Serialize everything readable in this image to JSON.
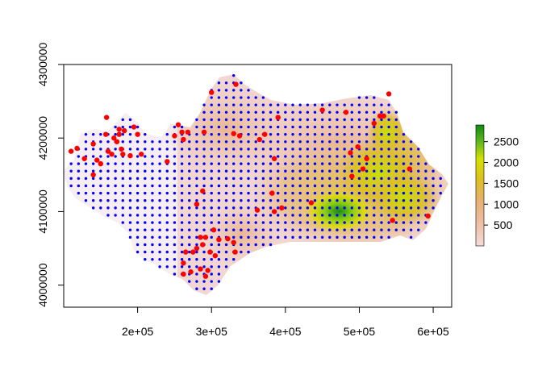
{
  "chart_data": {
    "type": "scatter",
    "title": "",
    "xlabel": "",
    "ylabel": "",
    "xlim": [
      100000,
      625000
    ],
    "ylim": [
      3970000,
      4300000
    ],
    "x_ticks": [
      200000,
      300000,
      400000,
      500000,
      600000
    ],
    "x_tick_labels": [
      "2e+05",
      "3e+05",
      "4e+05",
      "5e+05",
      "6e+05"
    ],
    "y_ticks": [
      4000000,
      4100000,
      4200000,
      4300000
    ],
    "y_tick_labels": [
      "4000000",
      "4100000",
      "4200000",
      "4300000"
    ],
    "grid": false,
    "legend": {
      "type": "colorbar",
      "placement": "right",
      "range": [
        0,
        2900
      ],
      "ticks": [
        500,
        1000,
        1500,
        2000,
        2500
      ],
      "tick_labels": [
        "500",
        "1000",
        "1500",
        "2000",
        "2500"
      ],
      "colors": [
        "#f5dcd8",
        "#eab38a",
        "#dcc020",
        "#d2e000",
        "#1a8f1a"
      ]
    },
    "background_field": {
      "description_hidden": true,
      "type": "heatmap",
      "hotspots": [
        {
          "x": 470000,
          "y": 4100000,
          "value": 2800
        },
        {
          "x": 510000,
          "y": 4130000,
          "value": 2000
        },
        {
          "x": 525000,
          "y": 4200000,
          "value": 1700
        },
        {
          "x": 440000,
          "y": 4140000,
          "value": 1400
        },
        {
          "x": 540000,
          "y": 4150000,
          "value": 1400
        }
      ]
    },
    "series": [
      {
        "style": "grid-points",
        "color": "#0000ff",
        "spacing": 10000
      },
      {
        "style": "observation-points",
        "color": "#ff0000",
        "points": [
          [
            110000,
            4182000
          ],
          [
            118000,
            4186000
          ],
          [
            128000,
            4172000
          ],
          [
            140000,
            4192000
          ],
          [
            145000,
            4170000
          ],
          [
            150000,
            4165000
          ],
          [
            157000,
            4205000
          ],
          [
            160000,
            4182000
          ],
          [
            158000,
            4228000
          ],
          [
            165000,
            4178000
          ],
          [
            168000,
            4200000
          ],
          [
            172000,
            4195000
          ],
          [
            175000,
            4205000
          ],
          [
            178000,
            4185000
          ],
          [
            180000,
            4178000
          ],
          [
            175000,
            4212000
          ],
          [
            182000,
            4210000
          ],
          [
            195000,
            4215000
          ],
          [
            200000,
            4205000
          ],
          [
            190000,
            4176000
          ],
          [
            205000,
            4178000
          ],
          [
            140000,
            4150000
          ],
          [
            240000,
            4168000
          ],
          [
            250000,
            4203000
          ],
          [
            255000,
            4218000
          ],
          [
            262000,
            4198000
          ],
          [
            260000,
            4208000
          ],
          [
            268000,
            4208000
          ],
          [
            290000,
            4208000
          ],
          [
            300000,
            4262000
          ],
          [
            333000,
            4273000
          ],
          [
            330000,
            4206000
          ],
          [
            338000,
            4203000
          ],
          [
            365000,
            4198000
          ],
          [
            372000,
            4205000
          ],
          [
            390000,
            4228000
          ],
          [
            385000,
            4172000
          ],
          [
            382000,
            4125000
          ],
          [
            385000,
            4100000
          ],
          [
            395000,
            4105000
          ],
          [
            362000,
            4102000
          ],
          [
            288000,
            4128000
          ],
          [
            280000,
            4110000
          ],
          [
            303000,
            4075000
          ],
          [
            310000,
            4062000
          ],
          [
            322000,
            4063000
          ],
          [
            330000,
            4058000
          ],
          [
            285000,
            4065000
          ],
          [
            292000,
            4065000
          ],
          [
            288000,
            4055000
          ],
          [
            280000,
            4050000
          ],
          [
            298000,
            4045000
          ],
          [
            305000,
            4040000
          ],
          [
            332000,
            4045000
          ],
          [
            265000,
            4045000
          ],
          [
            275000,
            4045000
          ],
          [
            262000,
            4030000
          ],
          [
            262000,
            4015000
          ],
          [
            272000,
            4018000
          ],
          [
            285000,
            4022000
          ],
          [
            295000,
            4020000
          ],
          [
            292000,
            4012000
          ],
          [
            435000,
            4112000
          ],
          [
            450000,
            4238000
          ],
          [
            482000,
            4235000
          ],
          [
            488000,
            4180000
          ],
          [
            498000,
            4188000
          ],
          [
            510000,
            4172000
          ],
          [
            520000,
            4220000
          ],
          [
            528000,
            4230000
          ],
          [
            533000,
            4230000
          ],
          [
            540000,
            4260000
          ],
          [
            490000,
            4148000
          ],
          [
            505000,
            4158000
          ],
          [
            545000,
            4088000
          ],
          [
            568000,
            4158000
          ],
          [
            593000,
            4094000
          ]
        ]
      }
    ]
  }
}
